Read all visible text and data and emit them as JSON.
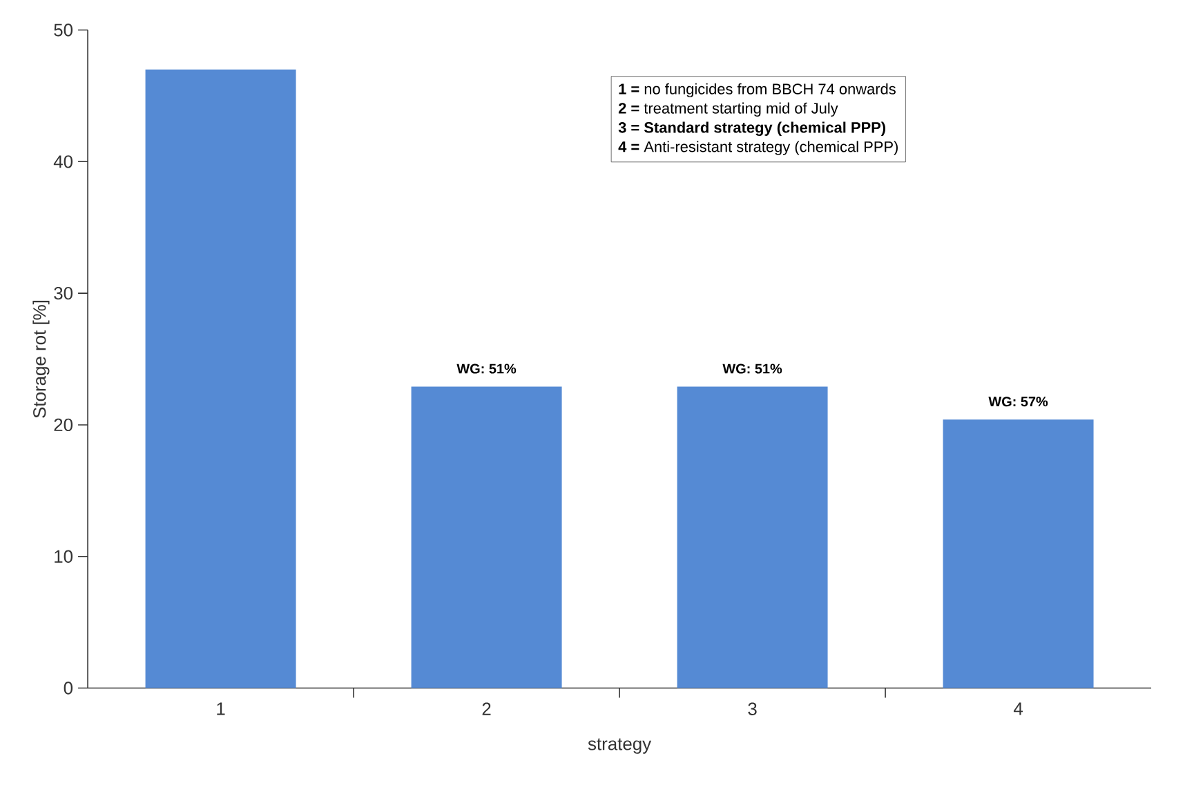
{
  "chart_data": {
    "type": "bar",
    "xlabel": "strategy",
    "ylabel": "Storage rot [%]",
    "categories": [
      "1",
      "2",
      "3",
      "4"
    ],
    "values": [
      47,
      22.9,
      22.9,
      20.4
    ],
    "color": "#558ad4",
    "ylim": [
      0,
      50
    ],
    "yticks": [
      0,
      10,
      20,
      30,
      40,
      50
    ],
    "grid": false,
    "annotations": [
      {
        "text": "WG: 51%",
        "x": "2",
        "y": 22.9
      },
      {
        "text": "WG: 51%",
        "x": "3",
        "y": 22.9
      },
      {
        "text": "WG: 57%",
        "x": "4",
        "y": 20.4
      },
      "**1 =** no fungicides from BBCH 74 onwards",
      "**2 =** treatment starting mid of July",
      "**3 = Standard strategy (chemical PPP)**",
      "**4 =** Anti-resistant strategy (chemical PPP)"
    ]
  }
}
